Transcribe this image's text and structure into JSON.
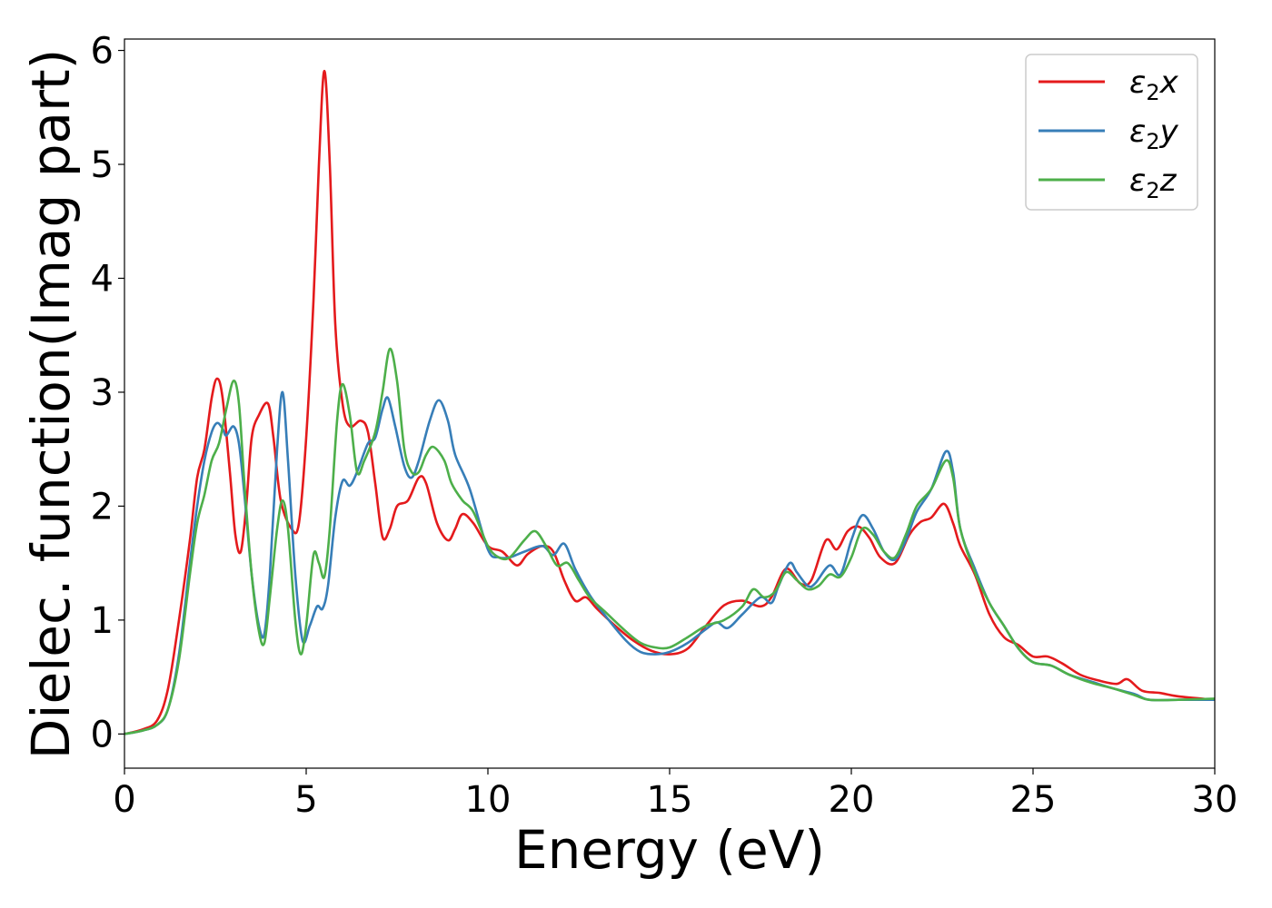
{
  "chart_data": {
    "type": "line",
    "title": "",
    "xlabel": "Energy (eV)",
    "ylabel": "Dielec. function(Imag part)",
    "xlim": [
      0,
      30
    ],
    "ylim": [
      -0.3,
      6.1
    ],
    "xticks": [
      0,
      5,
      10,
      15,
      20,
      25,
      30
    ],
    "yticks": [
      0,
      1,
      2,
      3,
      4,
      5,
      6
    ],
    "grid": false,
    "legend_position": "top-right",
    "series": [
      {
        "name": "ε₂x",
        "label_base": "ε",
        "label_sub": "2",
        "label_suffix": "x",
        "color": "#e41a1c",
        "points": [
          [
            0,
            0
          ],
          [
            0.5,
            0.04
          ],
          [
            0.9,
            0.12
          ],
          [
            1.2,
            0.4
          ],
          [
            1.5,
            1.0
          ],
          [
            1.8,
            1.7
          ],
          [
            2.0,
            2.25
          ],
          [
            2.2,
            2.5
          ],
          [
            2.4,
            2.95
          ],
          [
            2.55,
            3.12
          ],
          [
            2.7,
            2.95
          ],
          [
            2.9,
            2.3
          ],
          [
            3.05,
            1.75
          ],
          [
            3.2,
            1.6
          ],
          [
            3.35,
            2.0
          ],
          [
            3.5,
            2.6
          ],
          [
            3.7,
            2.8
          ],
          [
            3.95,
            2.9
          ],
          [
            4.1,
            2.6
          ],
          [
            4.3,
            2.05
          ],
          [
            4.6,
            1.8
          ],
          [
            4.8,
            1.85
          ],
          [
            5.0,
            2.6
          ],
          [
            5.2,
            3.8
          ],
          [
            5.35,
            5.0
          ],
          [
            5.5,
            5.82
          ],
          [
            5.65,
            5.0
          ],
          [
            5.8,
            3.6
          ],
          [
            6.0,
            2.9
          ],
          [
            6.2,
            2.7
          ],
          [
            6.5,
            2.75
          ],
          [
            6.7,
            2.65
          ],
          [
            6.9,
            2.2
          ],
          [
            7.1,
            1.73
          ],
          [
            7.3,
            1.8
          ],
          [
            7.5,
            2.0
          ],
          [
            7.8,
            2.05
          ],
          [
            8.1,
            2.25
          ],
          [
            8.3,
            2.2
          ],
          [
            8.6,
            1.85
          ],
          [
            8.9,
            1.7
          ],
          [
            9.1,
            1.8
          ],
          [
            9.3,
            1.93
          ],
          [
            9.6,
            1.85
          ],
          [
            10.0,
            1.65
          ],
          [
            10.4,
            1.6
          ],
          [
            10.8,
            1.48
          ],
          [
            11.1,
            1.58
          ],
          [
            11.5,
            1.65
          ],
          [
            11.8,
            1.6
          ],
          [
            12.1,
            1.35
          ],
          [
            12.4,
            1.17
          ],
          [
            12.7,
            1.2
          ],
          [
            13.0,
            1.1
          ],
          [
            13.5,
            0.95
          ],
          [
            14.0,
            0.82
          ],
          [
            14.5,
            0.73
          ],
          [
            15.0,
            0.7
          ],
          [
            15.5,
            0.75
          ],
          [
            16.0,
            0.95
          ],
          [
            16.5,
            1.13
          ],
          [
            17.0,
            1.17
          ],
          [
            17.5,
            1.12
          ],
          [
            17.8,
            1.2
          ],
          [
            18.2,
            1.45
          ],
          [
            18.6,
            1.32
          ],
          [
            18.9,
            1.35
          ],
          [
            19.3,
            1.7
          ],
          [
            19.6,
            1.62
          ],
          [
            19.9,
            1.78
          ],
          [
            20.2,
            1.82
          ],
          [
            20.5,
            1.72
          ],
          [
            20.8,
            1.55
          ],
          [
            21.2,
            1.5
          ],
          [
            21.6,
            1.75
          ],
          [
            21.9,
            1.86
          ],
          [
            22.2,
            1.9
          ],
          [
            22.55,
            2.02
          ],
          [
            22.8,
            1.85
          ],
          [
            23.0,
            1.65
          ],
          [
            23.4,
            1.4
          ],
          [
            23.8,
            1.05
          ],
          [
            24.2,
            0.85
          ],
          [
            24.6,
            0.78
          ],
          [
            25.0,
            0.68
          ],
          [
            25.4,
            0.68
          ],
          [
            25.8,
            0.62
          ],
          [
            26.3,
            0.52
          ],
          [
            26.8,
            0.47
          ],
          [
            27.3,
            0.44
          ],
          [
            27.6,
            0.48
          ],
          [
            28.0,
            0.38
          ],
          [
            28.5,
            0.36
          ],
          [
            29.0,
            0.33
          ],
          [
            30.0,
            0.3
          ]
        ]
      },
      {
        "name": "ε₂y",
        "label_base": "ε",
        "label_sub": "2",
        "label_suffix": "y",
        "color": "#377eb8",
        "points": [
          [
            0,
            0
          ],
          [
            0.5,
            0.03
          ],
          [
            0.9,
            0.08
          ],
          [
            1.2,
            0.22
          ],
          [
            1.5,
            0.7
          ],
          [
            1.8,
            1.5
          ],
          [
            2.0,
            2.0
          ],
          [
            2.2,
            2.4
          ],
          [
            2.4,
            2.65
          ],
          [
            2.55,
            2.73
          ],
          [
            2.7,
            2.68
          ],
          [
            2.8,
            2.62
          ],
          [
            3.0,
            2.7
          ],
          [
            3.15,
            2.55
          ],
          [
            3.3,
            2.1
          ],
          [
            3.5,
            1.4
          ],
          [
            3.7,
            0.95
          ],
          [
            3.85,
            0.88
          ],
          [
            4.0,
            1.4
          ],
          [
            4.2,
            2.5
          ],
          [
            4.35,
            3.0
          ],
          [
            4.5,
            2.4
          ],
          [
            4.7,
            1.4
          ],
          [
            4.9,
            0.82
          ],
          [
            5.1,
            0.95
          ],
          [
            5.3,
            1.12
          ],
          [
            5.45,
            1.1
          ],
          [
            5.6,
            1.3
          ],
          [
            5.8,
            1.9
          ],
          [
            6.0,
            2.22
          ],
          [
            6.2,
            2.18
          ],
          [
            6.4,
            2.3
          ],
          [
            6.7,
            2.55
          ],
          [
            6.9,
            2.6
          ],
          [
            7.1,
            2.85
          ],
          [
            7.25,
            2.95
          ],
          [
            7.45,
            2.7
          ],
          [
            7.7,
            2.35
          ],
          [
            7.9,
            2.25
          ],
          [
            8.1,
            2.4
          ],
          [
            8.4,
            2.75
          ],
          [
            8.65,
            2.93
          ],
          [
            8.9,
            2.75
          ],
          [
            9.1,
            2.45
          ],
          [
            9.5,
            2.15
          ],
          [
            10.0,
            1.62
          ],
          [
            10.3,
            1.55
          ],
          [
            10.6,
            1.55
          ],
          [
            11.0,
            1.6
          ],
          [
            11.5,
            1.65
          ],
          [
            11.8,
            1.57
          ],
          [
            12.1,
            1.67
          ],
          [
            12.4,
            1.45
          ],
          [
            12.8,
            1.22
          ],
          [
            13.2,
            1.05
          ],
          [
            13.8,
            0.82
          ],
          [
            14.2,
            0.72
          ],
          [
            14.6,
            0.7
          ],
          [
            15.0,
            0.72
          ],
          [
            15.5,
            0.8
          ],
          [
            16.0,
            0.92
          ],
          [
            16.3,
            0.98
          ],
          [
            16.6,
            0.93
          ],
          [
            17.0,
            1.05
          ],
          [
            17.5,
            1.2
          ],
          [
            17.8,
            1.15
          ],
          [
            18.0,
            1.3
          ],
          [
            18.3,
            1.5
          ],
          [
            18.5,
            1.42
          ],
          [
            18.8,
            1.3
          ],
          [
            19.0,
            1.32
          ],
          [
            19.4,
            1.48
          ],
          [
            19.7,
            1.4
          ],
          [
            20.0,
            1.7
          ],
          [
            20.3,
            1.92
          ],
          [
            20.6,
            1.8
          ],
          [
            20.9,
            1.6
          ],
          [
            21.2,
            1.53
          ],
          [
            21.5,
            1.7
          ],
          [
            21.8,
            1.95
          ],
          [
            22.2,
            2.15
          ],
          [
            22.6,
            2.48
          ],
          [
            22.8,
            2.3
          ],
          [
            23.0,
            1.8
          ],
          [
            23.4,
            1.45
          ],
          [
            23.8,
            1.15
          ],
          [
            24.2,
            0.95
          ],
          [
            24.6,
            0.75
          ],
          [
            25.0,
            0.63
          ],
          [
            25.5,
            0.6
          ],
          [
            26.0,
            0.52
          ],
          [
            26.6,
            0.46
          ],
          [
            27.2,
            0.4
          ],
          [
            27.8,
            0.35
          ],
          [
            28.2,
            0.3
          ],
          [
            29.0,
            0.3
          ],
          [
            30.0,
            0.3
          ]
        ]
      },
      {
        "name": "ε₂z",
        "label_base": "ε",
        "label_sub": "2",
        "label_suffix": "z",
        "color": "#4daf4a",
        "points": [
          [
            0,
            0
          ],
          [
            0.5,
            0.03
          ],
          [
            0.9,
            0.08
          ],
          [
            1.2,
            0.22
          ],
          [
            1.5,
            0.65
          ],
          [
            1.8,
            1.4
          ],
          [
            2.0,
            1.85
          ],
          [
            2.2,
            2.1
          ],
          [
            2.4,
            2.4
          ],
          [
            2.6,
            2.55
          ],
          [
            2.8,
            2.85
          ],
          [
            3.0,
            3.1
          ],
          [
            3.15,
            2.9
          ],
          [
            3.3,
            2.2
          ],
          [
            3.5,
            1.4
          ],
          [
            3.7,
            0.9
          ],
          [
            3.85,
            0.8
          ],
          [
            4.0,
            1.2
          ],
          [
            4.2,
            1.8
          ],
          [
            4.35,
            2.05
          ],
          [
            4.5,
            1.8
          ],
          [
            4.7,
            1.0
          ],
          [
            4.85,
            0.7
          ],
          [
            5.0,
            0.95
          ],
          [
            5.2,
            1.57
          ],
          [
            5.35,
            1.5
          ],
          [
            5.5,
            1.38
          ],
          [
            5.65,
            1.8
          ],
          [
            5.85,
            2.75
          ],
          [
            6.0,
            3.07
          ],
          [
            6.2,
            2.8
          ],
          [
            6.4,
            2.3
          ],
          [
            6.6,
            2.4
          ],
          [
            6.9,
            2.65
          ],
          [
            7.1,
            3.0
          ],
          [
            7.3,
            3.38
          ],
          [
            7.5,
            3.1
          ],
          [
            7.7,
            2.5
          ],
          [
            7.9,
            2.3
          ],
          [
            8.1,
            2.3
          ],
          [
            8.3,
            2.45
          ],
          [
            8.5,
            2.52
          ],
          [
            8.8,
            2.4
          ],
          [
            9.0,
            2.2
          ],
          [
            9.3,
            2.05
          ],
          [
            9.6,
            1.95
          ],
          [
            10.0,
            1.65
          ],
          [
            10.3,
            1.55
          ],
          [
            10.6,
            1.55
          ],
          [
            11.0,
            1.7
          ],
          [
            11.3,
            1.78
          ],
          [
            11.6,
            1.65
          ],
          [
            11.9,
            1.48
          ],
          [
            12.2,
            1.5
          ],
          [
            12.5,
            1.35
          ],
          [
            12.8,
            1.2
          ],
          [
            13.2,
            1.08
          ],
          [
            13.8,
            0.9
          ],
          [
            14.2,
            0.8
          ],
          [
            14.6,
            0.76
          ],
          [
            15.0,
            0.76
          ],
          [
            15.5,
            0.85
          ],
          [
            16.0,
            0.95
          ],
          [
            16.5,
            1.0
          ],
          [
            17.0,
            1.12
          ],
          [
            17.3,
            1.27
          ],
          [
            17.6,
            1.2
          ],
          [
            17.9,
            1.25
          ],
          [
            18.2,
            1.42
          ],
          [
            18.5,
            1.35
          ],
          [
            18.8,
            1.27
          ],
          [
            19.1,
            1.3
          ],
          [
            19.4,
            1.4
          ],
          [
            19.7,
            1.38
          ],
          [
            20.0,
            1.55
          ],
          [
            20.3,
            1.8
          ],
          [
            20.6,
            1.75
          ],
          [
            20.9,
            1.6
          ],
          [
            21.2,
            1.55
          ],
          [
            21.5,
            1.75
          ],
          [
            21.8,
            2.0
          ],
          [
            22.2,
            2.15
          ],
          [
            22.6,
            2.4
          ],
          [
            22.8,
            2.25
          ],
          [
            23.0,
            1.8
          ],
          [
            23.4,
            1.42
          ],
          [
            23.8,
            1.15
          ],
          [
            24.2,
            0.95
          ],
          [
            24.6,
            0.75
          ],
          [
            25.0,
            0.63
          ],
          [
            25.5,
            0.6
          ],
          [
            26.0,
            0.52
          ],
          [
            26.6,
            0.45
          ],
          [
            27.2,
            0.4
          ],
          [
            27.8,
            0.34
          ],
          [
            28.2,
            0.3
          ],
          [
            29.0,
            0.3
          ],
          [
            30.0,
            0.31
          ]
        ]
      }
    ]
  }
}
